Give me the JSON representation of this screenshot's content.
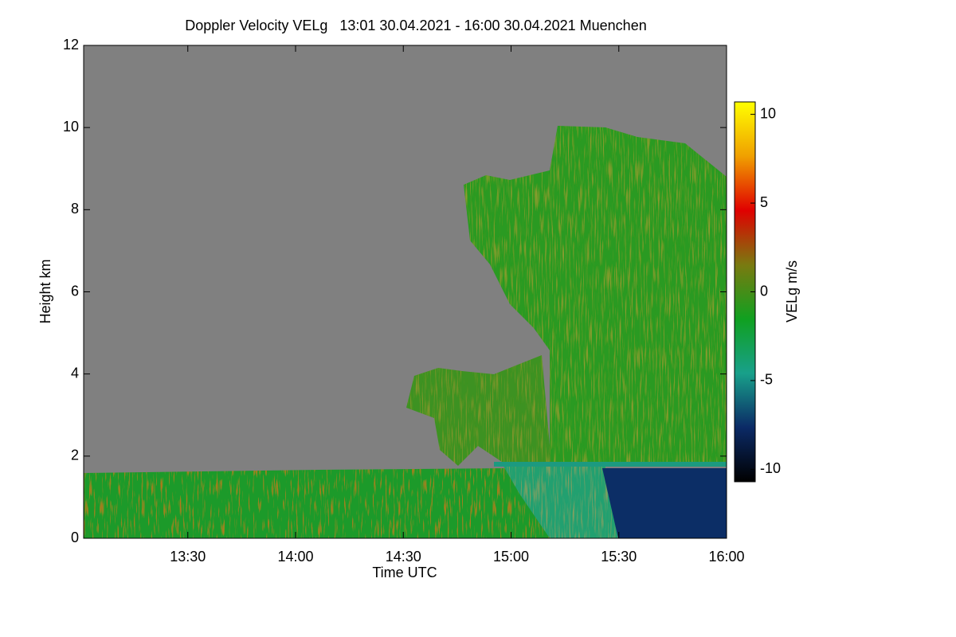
{
  "chart_data": {
    "type": "heatmap",
    "title": "Doppler Velocity VELg   13:01 30.04.2021 - 16:00 30.04.2021 Muenchen",
    "x_label": "Time UTC",
    "y_label": "Height km",
    "colorbar_label": "VELg m/s",
    "xlim": [
      781,
      960
    ],
    "xticks": [
      {
        "value": 810,
        "label": "13:30"
      },
      {
        "value": 840,
        "label": "14:00"
      },
      {
        "value": 870,
        "label": "14:30"
      },
      {
        "value": 900,
        "label": "15:00"
      },
      {
        "value": 930,
        "label": "15:30"
      },
      {
        "value": 960,
        "label": "16:00"
      }
    ],
    "ylim": [
      0,
      12
    ],
    "yticks": [
      0,
      2,
      4,
      6,
      8,
      10,
      12
    ],
    "clim": [
      -10.7,
      10.7
    ],
    "cticks": [
      -10,
      -5,
      0,
      5,
      10
    ],
    "colormap": [
      "#000000",
      "#0b2a66",
      "#18a08a",
      "#10a020",
      "#7a7a10",
      "#e00000",
      "#f0a000",
      "#ffff00"
    ],
    "background_color": "#808080"
  }
}
